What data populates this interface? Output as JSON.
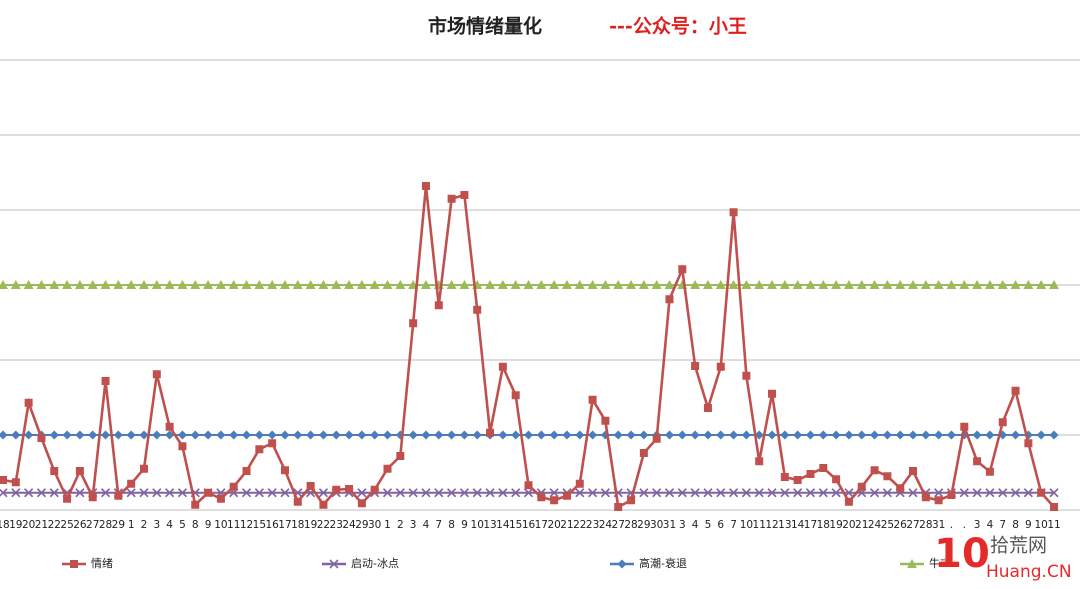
{
  "chart_data": {
    "type": "line",
    "title": "市场情绪量化",
    "subtitle": "---公众号：小王",
    "categories": [
      "18",
      "19",
      "20",
      "21",
      "22",
      "25",
      "26",
      "27",
      "28",
      "29",
      "1",
      "2",
      "3",
      "4",
      "5",
      "8",
      "9",
      "10",
      "11",
      "12",
      "15",
      "16",
      "17",
      "18",
      "19",
      "22",
      "23",
      "24",
      "29",
      "30",
      "1",
      "2",
      "3",
      "4",
      "7",
      "8",
      "9",
      "10",
      "13",
      "14",
      "15",
      "16",
      "17",
      "20",
      "21",
      "22",
      "23",
      "24",
      "27",
      "28",
      "29",
      "30",
      "31",
      "3",
      "4",
      "5",
      "6",
      "7",
      "10",
      "11",
      "12",
      "13",
      "14",
      "17",
      "18",
      "19",
      "20",
      "21",
      "24",
      "25",
      "26",
      "27",
      "28",
      "31",
      ".",
      ".",
      "3",
      "4",
      "7",
      "8",
      "9",
      "10",
      "11"
    ],
    "series": [
      {
        "name": "情绪",
        "color": "#c0504d",
        "marker": "square",
        "values": [
          0.4,
          0.37,
          1.43,
          0.96,
          0.52,
          0.15,
          0.52,
          0.17,
          1.72,
          0.19,
          0.35,
          0.55,
          1.81,
          1.11,
          0.85,
          0.07,
          0.23,
          0.15,
          0.31,
          0.52,
          0.81,
          0.89,
          0.53,
          0.11,
          0.32,
          0.07,
          0.27,
          0.28,
          0.09,
          0.27,
          0.55,
          0.72,
          2.49,
          4.32,
          2.73,
          4.15,
          4.2,
          2.67,
          1.03,
          1.91,
          1.53,
          0.33,
          0.17,
          0.13,
          0.19,
          0.35,
          1.47,
          1.19,
          0.04,
          0.13,
          0.76,
          0.95,
          2.81,
          3.21,
          1.92,
          1.36,
          1.91,
          3.97,
          1.79,
          0.65,
          1.55,
          0.44,
          0.4,
          0.48,
          0.56,
          0.41,
          0.11,
          0.31,
          0.53,
          0.45,
          0.29,
          0.52,
          0.17,
          0.13,
          0.2,
          1.11,
          0.65,
          0.51,
          1.17,
          1.59,
          0.89,
          0.23,
          0.04
        ]
      },
      {
        "name": "启动-冰点",
        "color": "#8064a2",
        "marker": "x",
        "values": [
          0.23,
          0.23,
          0.23,
          0.23,
          0.23,
          0.23,
          0.23,
          0.23,
          0.23,
          0.23,
          0.23,
          0.23,
          0.23,
          0.23,
          0.23,
          0.23,
          0.23,
          0.23,
          0.23,
          0.23,
          0.23,
          0.23,
          0.23,
          0.23,
          0.23,
          0.23,
          0.23,
          0.23,
          0.23,
          0.23,
          0.23,
          0.23,
          0.23,
          0.23,
          0.23,
          0.23,
          0.23,
          0.23,
          0.23,
          0.23,
          0.23,
          0.23,
          0.23,
          0.23,
          0.23,
          0.23,
          0.23,
          0.23,
          0.23,
          0.23,
          0.23,
          0.23,
          0.23,
          0.23,
          0.23,
          0.23,
          0.23,
          0.23,
          0.23,
          0.23,
          0.23,
          0.23,
          0.23,
          0.23,
          0.23,
          0.23,
          0.23,
          0.23,
          0.23,
          0.23,
          0.23,
          0.23,
          0.23,
          0.23,
          0.23,
          0.23,
          0.23,
          0.23,
          0.23,
          0.23,
          0.23,
          0.23,
          0.23
        ]
      },
      {
        "name": "高潮-衰退",
        "color": "#4a7ebb",
        "marker": "diamond",
        "values": [
          1,
          1,
          1,
          1,
          1,
          1,
          1,
          1,
          1,
          1,
          1,
          1,
          1,
          1,
          1,
          1,
          1,
          1,
          1,
          1,
          1,
          1,
          1,
          1,
          1,
          1,
          1,
          1,
          1,
          1,
          1,
          1,
          1,
          1,
          1,
          1,
          1,
          1,
          1,
          1,
          1,
          1,
          1,
          1,
          1,
          1,
          1,
          1,
          1,
          1,
          1,
          1,
          1,
          1,
          1,
          1,
          1,
          1,
          1,
          1,
          1,
          1,
          1,
          1,
          1,
          1,
          1,
          1,
          1,
          1,
          1,
          1,
          1,
          1,
          1,
          1,
          1,
          1,
          1,
          1,
          1,
          1,
          1
        ]
      },
      {
        "name": "牛市",
        "color": "#9bbb59",
        "marker": "triangle",
        "values": [
          3,
          3,
          3,
          3,
          3,
          3,
          3,
          3,
          3,
          3,
          3,
          3,
          3,
          3,
          3,
          3,
          3,
          3,
          3,
          3,
          3,
          3,
          3,
          3,
          3,
          3,
          3,
          3,
          3,
          3,
          3,
          3,
          3,
          3,
          3,
          3,
          3,
          3,
          3,
          3,
          3,
          3,
          3,
          3,
          3,
          3,
          3,
          3,
          3,
          3,
          3,
          3,
          3,
          3,
          3,
          3,
          3,
          3,
          3,
          3,
          3,
          3,
          3,
          3,
          3,
          3,
          3,
          3,
          3,
          3,
          3,
          3,
          3,
          3,
          3,
          3,
          3,
          3,
          3,
          3,
          3,
          3,
          3
        ]
      }
    ],
    "ylim": [
      0,
      6
    ],
    "yticks": [
      0,
      1,
      2,
      3,
      4,
      5,
      6
    ],
    "grid": true,
    "legend": "bottom",
    "watermark": {
      "logo": "10",
      "name": "拾荒网",
      "url": "Huang.CN"
    }
  }
}
